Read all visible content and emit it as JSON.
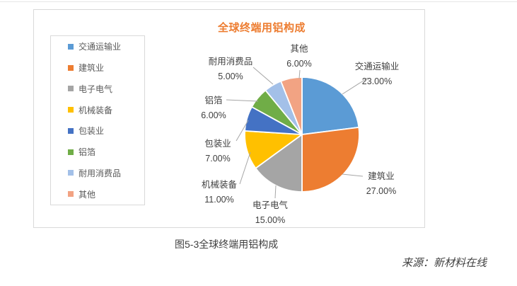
{
  "figure": {
    "caption": "图5-3全球终端用铝构成",
    "source": "来源：新材料在线"
  },
  "chart_data": {
    "type": "pie",
    "title": "全球终端用铝构成",
    "title_color": "#ED7D31",
    "legend_position": "left",
    "direction": "clockwise",
    "start_angle_deg": 0,
    "labels": [
      "交通运输业",
      "建筑业",
      "电子电气",
      "机械装备",
      "包装业",
      "铝箔",
      "耐用消费品",
      "其他"
    ],
    "values": [
      23,
      27,
      15,
      11,
      7,
      6,
      5,
      6
    ],
    "value_labels": [
      "23.00%",
      "27.00%",
      "15.00%",
      "11.00%",
      "7.00%",
      "6.00%",
      "5.00%",
      "6.00%"
    ],
    "colors": [
      "#5B9BD5",
      "#ED7D31",
      "#A5A5A5",
      "#FFC000",
      "#4472C4",
      "#70AD47",
      "#A3C0E8",
      "#F2A383"
    ],
    "leader_line_color": "#A6A6A6"
  }
}
